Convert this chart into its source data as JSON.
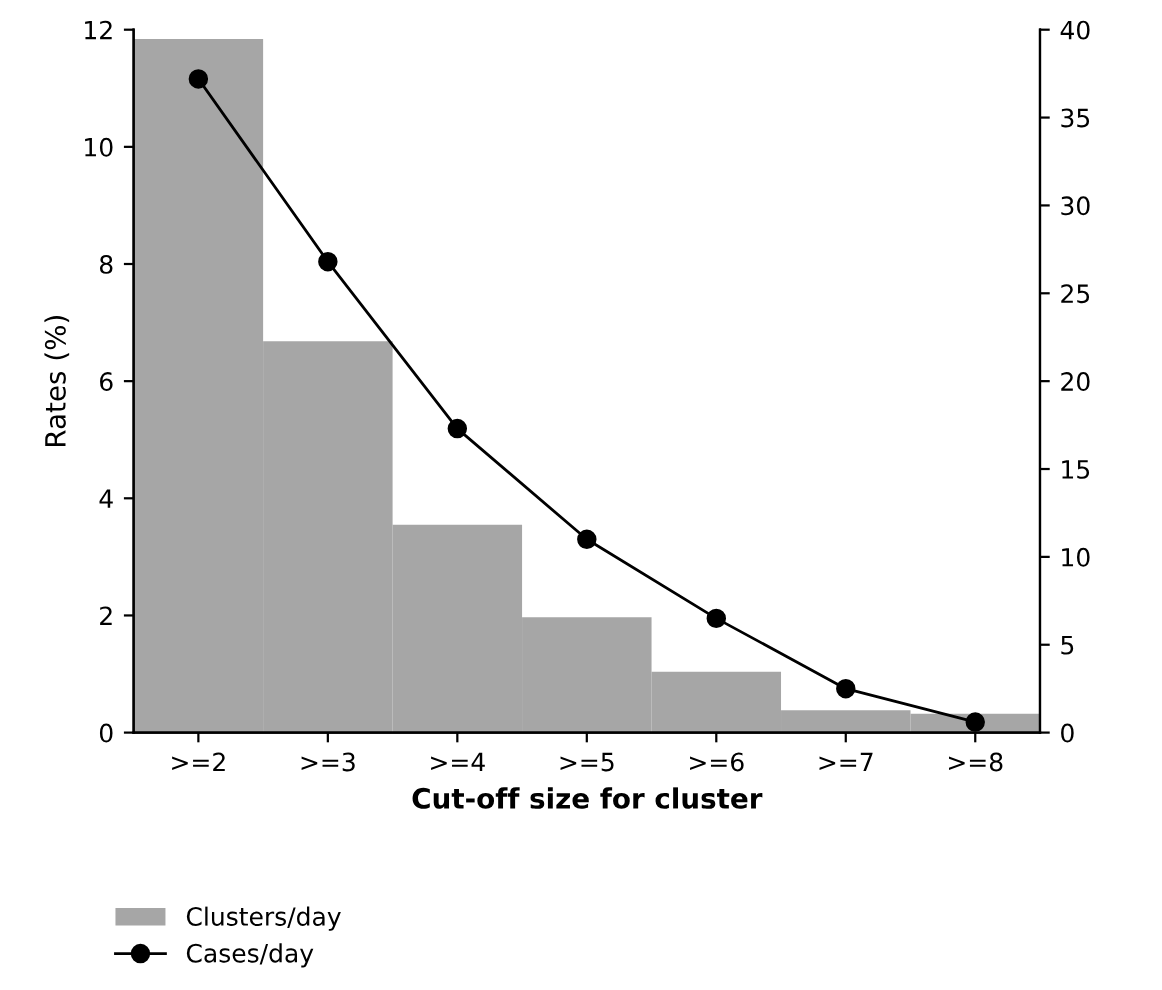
{
  "chart_data": {
    "type": "bar",
    "xlabel": "Cut-off size for cluster",
    "ylabel": "Rates (%)",
    "categories": [
      ">=2",
      ">=3",
      ">=4",
      ">=5",
      ">=6",
      ">=7",
      ">=8"
    ],
    "series": [
      {
        "name": "Clusters/day",
        "color": "#a6a6a6",
        "values": [
          11.84,
          6.68,
          3.55,
          1.97,
          1.04,
          0.38,
          0.32
        ]
      },
      {
        "name": "Cases/day",
        "type": "line",
        "axis": "y2",
        "color": "#000000",
        "marker": "circle",
        "values": [
          37.2,
          26.8,
          17.3,
          11.0,
          6.5,
          2.5,
          0.6
        ]
      }
    ],
    "ylim": [
      0,
      12
    ],
    "yticks": [
      0,
      2,
      4,
      6,
      8,
      10,
      12
    ],
    "y2lim": [
      0,
      40
    ],
    "y2ticks": [
      0,
      5,
      10,
      15,
      20,
      25,
      30,
      35,
      40
    ],
    "grid": false,
    "legend": "bottom left"
  }
}
